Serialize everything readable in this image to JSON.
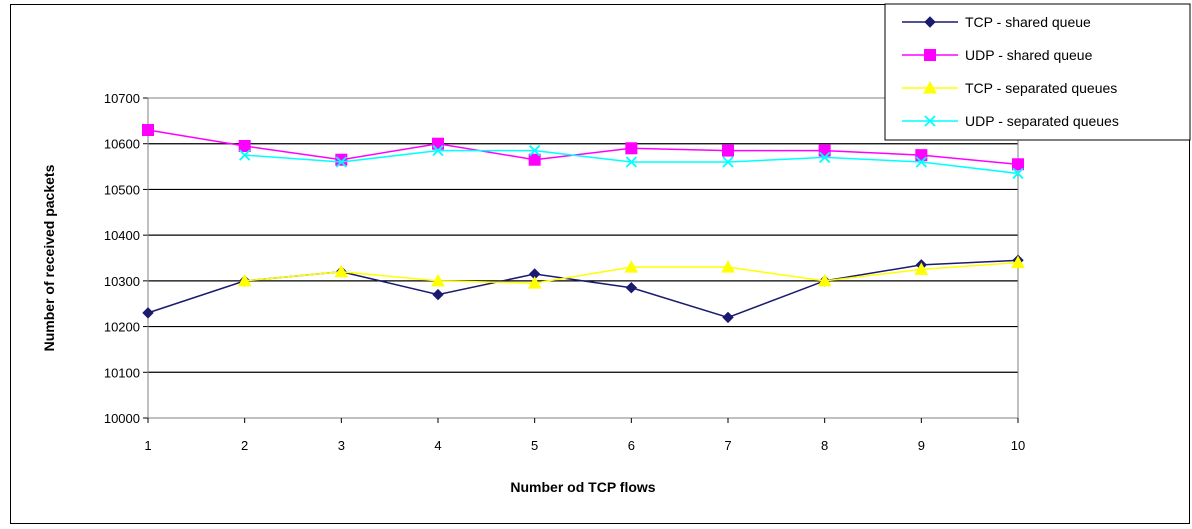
{
  "chart_data": {
    "type": "line",
    "title": "",
    "xlabel": "Number od TCP flows",
    "ylabel": "Number of received packets",
    "categories": [
      "1",
      "2",
      "3",
      "4",
      "5",
      "6",
      "7",
      "8",
      "9",
      "10"
    ],
    "ylim": [
      10000,
      10700
    ],
    "yticks": [
      "10000",
      "10100",
      "10200",
      "10300",
      "10400",
      "10500",
      "10600",
      "10700"
    ],
    "grid": "horizontal",
    "legend_position": "top-right",
    "series": [
      {
        "name": "TCP - shared queue",
        "color": "#1a1a6e",
        "marker": "diamond",
        "values": [
          10230,
          10300,
          10320,
          10270,
          10315,
          10285,
          10220,
          10300,
          10335,
          10345
        ]
      },
      {
        "name": "UDP - shared queue",
        "color": "#ff00ff",
        "marker": "square",
        "values": [
          10630,
          10595,
          10565,
          10600,
          10565,
          10590,
          10585,
          10585,
          10575,
          10555
        ]
      },
      {
        "name": "TCP - separated queues",
        "color": "#ffff00",
        "marker": "triangle",
        "values": [
          null,
          10300,
          10320,
          10300,
          10295,
          10330,
          10330,
          10300,
          10325,
          10340
        ]
      },
      {
        "name": "UDP - separated queues",
        "color": "#00ffff",
        "marker": "x",
        "values": [
          null,
          10575,
          10560,
          10585,
          10585,
          10560,
          10560,
          10570,
          10560,
          10535
        ]
      }
    ]
  }
}
